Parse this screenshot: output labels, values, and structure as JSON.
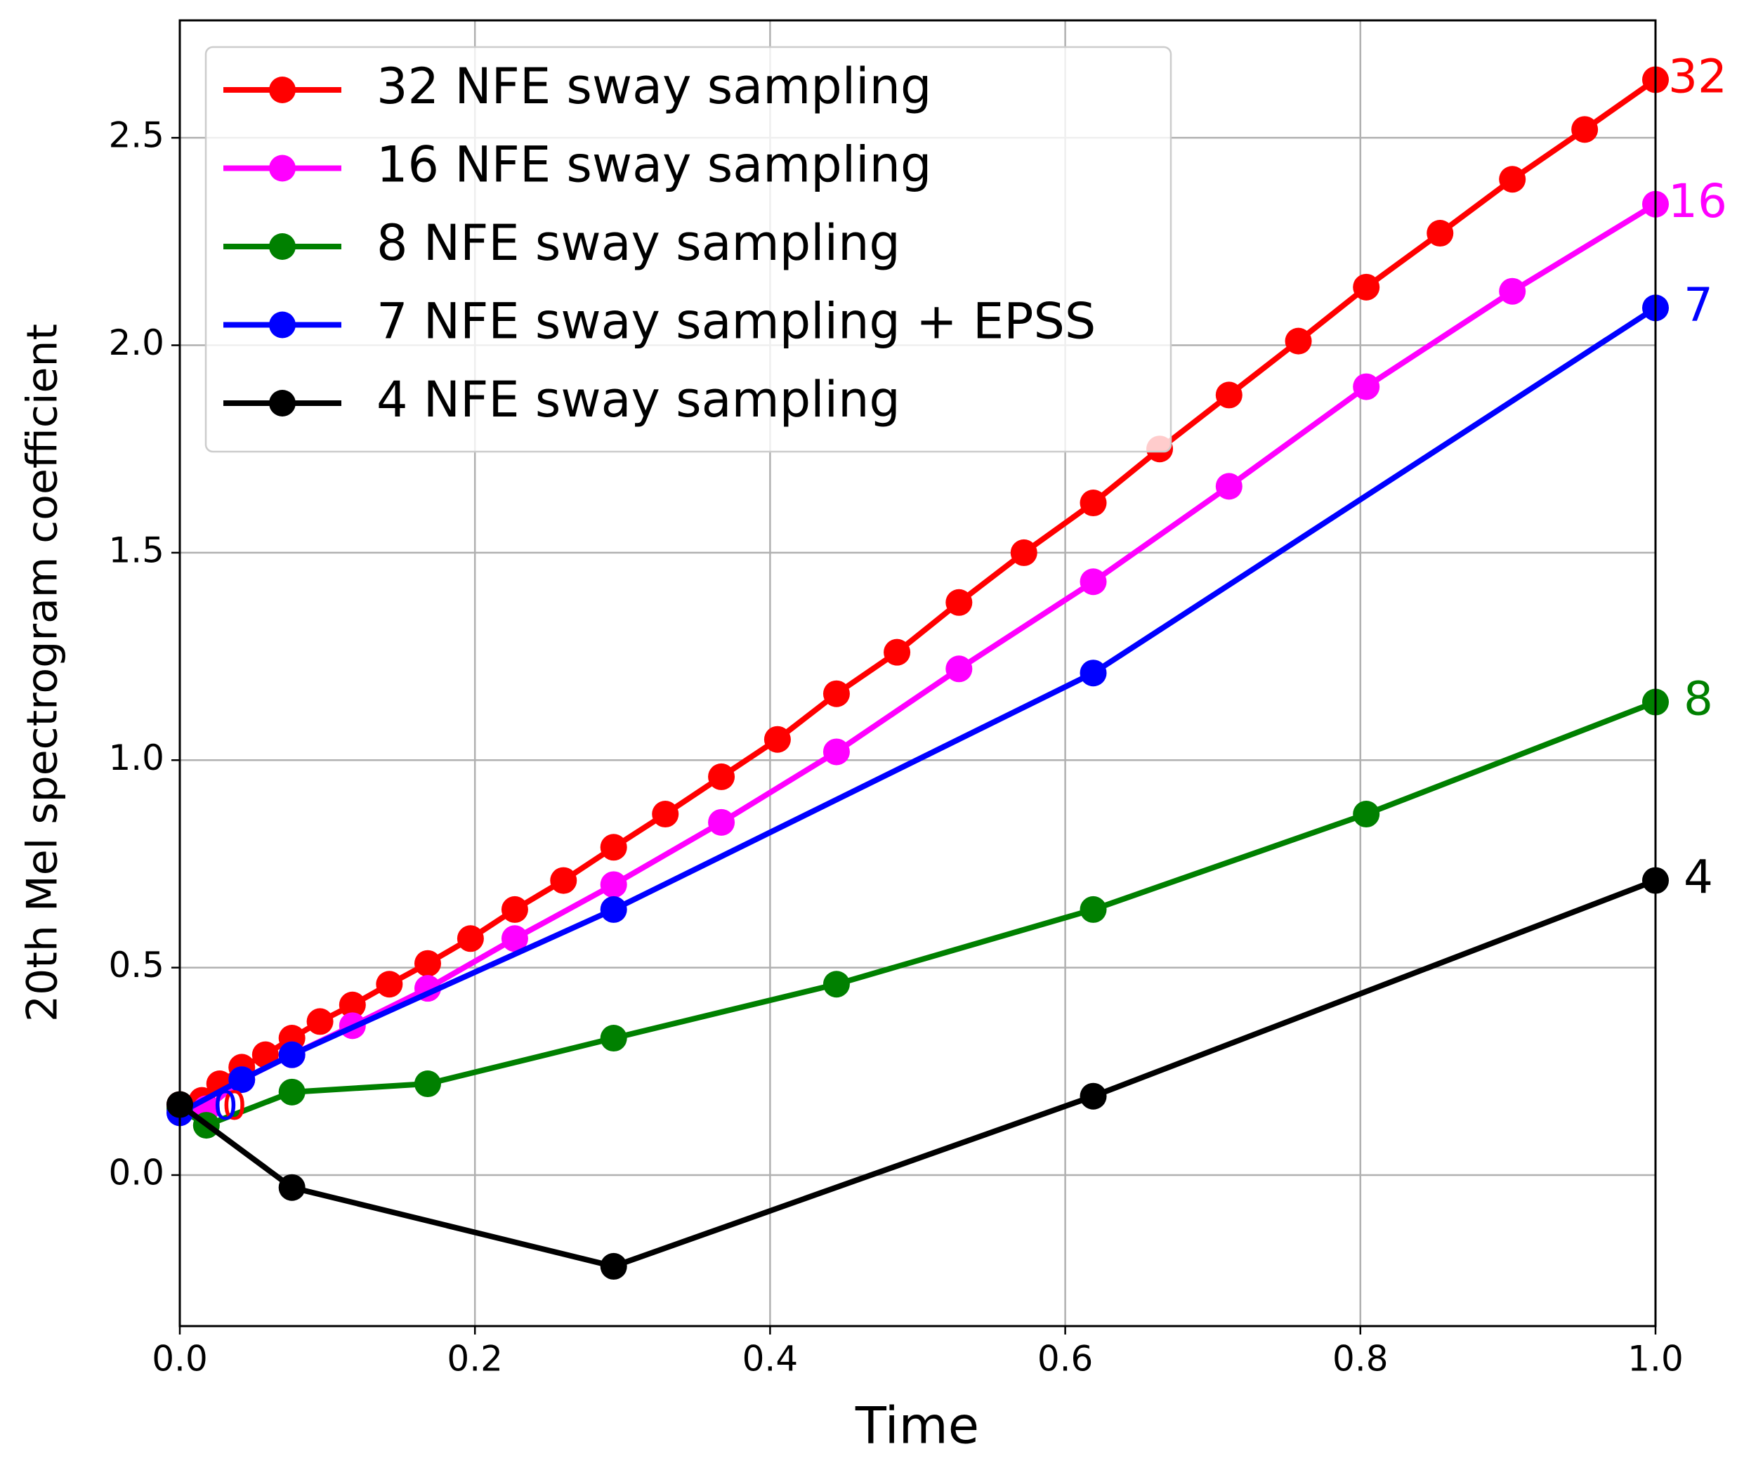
{
  "chart_data": {
    "type": "line",
    "xlabel": "Time",
    "ylabel": "20th Mel spectrogram coefficient",
    "xlim": [
      0,
      1
    ],
    "ylim": [
      -0.364,
      2.783
    ],
    "xticks": [
      {
        "value": 0,
        "label": "0.0"
      },
      0.2,
      0.4,
      0.6,
      0.8,
      {
        "value": 1,
        "label": "1.0"
      }
    ],
    "yticks": [
      {
        "value": 0,
        "label": "0.0"
      },
      0.5,
      {
        "value": 1,
        "label": "1.0"
      },
      1.5,
      {
        "value": 2,
        "label": "2.0"
      },
      2.5
    ],
    "grid": true,
    "legend": "upper left",
    "series": [
      {
        "name": "32 NFE sway sampling",
        "color": "#ff0000",
        "end_label": "32",
        "x": [
          0,
          0.015,
          0.027,
          0.042,
          0.058,
          0.076,
          0.095,
          0.117,
          0.142,
          0.168,
          0.197,
          0.227,
          0.26,
          0.294,
          0.329,
          0.367,
          0.405,
          0.445,
          0.486,
          0.528,
          0.572,
          0.619,
          0.664,
          0.711,
          0.758,
          0.804,
          0.854,
          0.903,
          0.952,
          1.0
        ],
        "values": [
          0.17,
          0.18,
          0.22,
          0.26,
          0.29,
          0.33,
          0.37,
          0.41,
          0.46,
          0.51,
          0.57,
          0.64,
          0.71,
          0.79,
          0.87,
          0.96,
          1.05,
          1.16,
          1.26,
          1.38,
          1.5,
          1.62,
          1.75,
          1.88,
          2.01,
          2.14,
          2.27,
          2.4,
          2.52,
          2.64
        ]
      },
      {
        "name": "16 NFE sway sampling",
        "color": "#ff00ff",
        "end_label": "16",
        "x": [
          0,
          0.018,
          0.042,
          0.076,
          0.117,
          0.168,
          0.227,
          0.294,
          0.367,
          0.445,
          0.528,
          0.619,
          0.711,
          0.804,
          0.903,
          1.0
        ],
        "values": [
          0.16,
          0.16,
          0.23,
          0.29,
          0.36,
          0.45,
          0.57,
          0.7,
          0.85,
          1.02,
          1.22,
          1.43,
          1.66,
          1.9,
          2.13,
          2.34
        ]
      },
      {
        "name": "8 NFE sway sampling",
        "color": "#008000",
        "end_label": "8",
        "x": [
          0,
          0.018,
          0.076,
          0.168,
          0.294,
          0.445,
          0.619,
          0.804,
          1.0
        ],
        "values": [
          0.16,
          0.12,
          0.2,
          0.22,
          0.33,
          0.46,
          0.64,
          0.87,
          1.14
        ]
      },
      {
        "name": "7 NFE sway sampling + EPSS",
        "color": "#0000ff",
        "end_label": "7",
        "x": [
          0,
          0.042,
          0.076,
          0.294,
          0.619,
          1.0
        ],
        "values": [
          0.15,
          0.23,
          0.29,
          0.64,
          1.21,
          2.09
        ]
      },
      {
        "name": "4 NFE sway sampling",
        "color": "#000000",
        "end_label": "4",
        "x": [
          0,
          0.076,
          0.294,
          0.619,
          1.0
        ],
        "values": [
          0.17,
          -0.03,
          -0.22,
          0.19,
          0.71
        ]
      }
    ],
    "annotations": [
      {
        "text": "0",
        "x": 0.018,
        "y": 0.16,
        "color": "#ff0000"
      },
      {
        "text": "0",
        "x": 0.012,
        "y": 0.16,
        "color": "#0000ff"
      }
    ]
  }
}
